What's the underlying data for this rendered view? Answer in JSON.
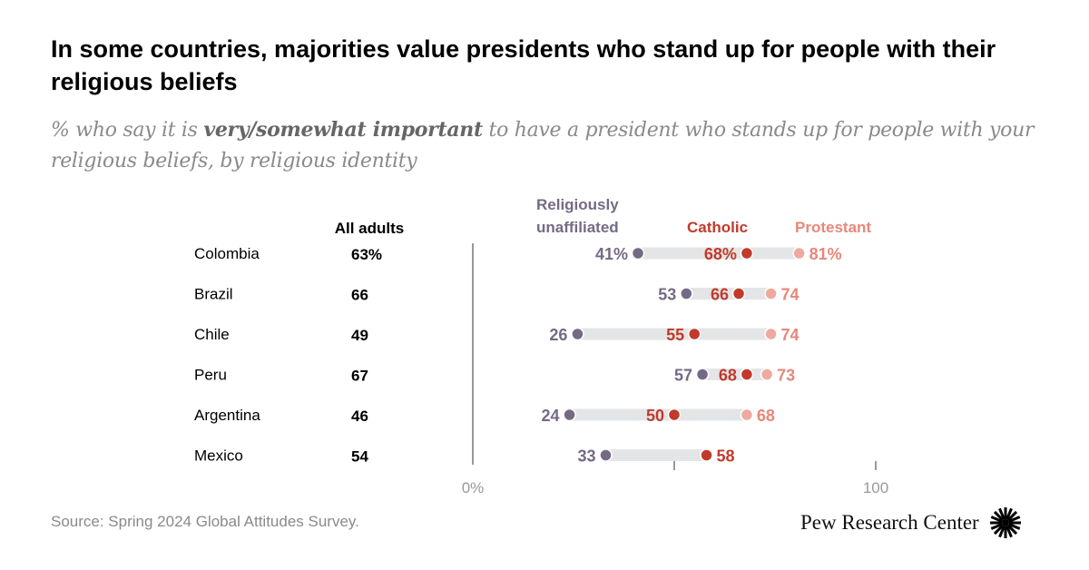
{
  "title": "In some countries, majorities value presidents who stand up for people with their religious beliefs",
  "subtitle": {
    "prefix": "% who say it is ",
    "emphasis": "very/somewhat important",
    "suffix": " to have a president who stands up for people with your religious beliefs, by religious identity"
  },
  "source": "Source: Spring 2024 Global Attitudes Survey.",
  "logo": "Pew Research Center",
  "chart_data": {
    "type": "dot",
    "all_adults_header": "All adults",
    "categories": [
      "Colombia",
      "Brazil",
      "Chile",
      "Peru",
      "Argentina",
      "Mexico"
    ],
    "all_adults": [
      63,
      66,
      49,
      67,
      46,
      54
    ],
    "series": [
      {
        "name": "Religiously unaffiliated",
        "color": "#756a84",
        "label_color": "#756a84",
        "values": [
          41,
          53,
          26,
          57,
          24,
          33
        ]
      },
      {
        "name": "Catholic",
        "color": "#c13a2b",
        "label_color": "#c13a2b",
        "values": [
          68,
          66,
          55,
          68,
          50,
          58
        ]
      },
      {
        "name": "Protestant",
        "color": "#efaa9f",
        "label_color": "#e8877a",
        "values": [
          81,
          74,
          74,
          73,
          68,
          null
        ]
      }
    ],
    "xlim": [
      0,
      100
    ],
    "x_ticks": [
      0,
      50,
      100
    ],
    "x_tick_labels": [
      "0%",
      "",
      "100"
    ],
    "percent_first_row": true
  }
}
